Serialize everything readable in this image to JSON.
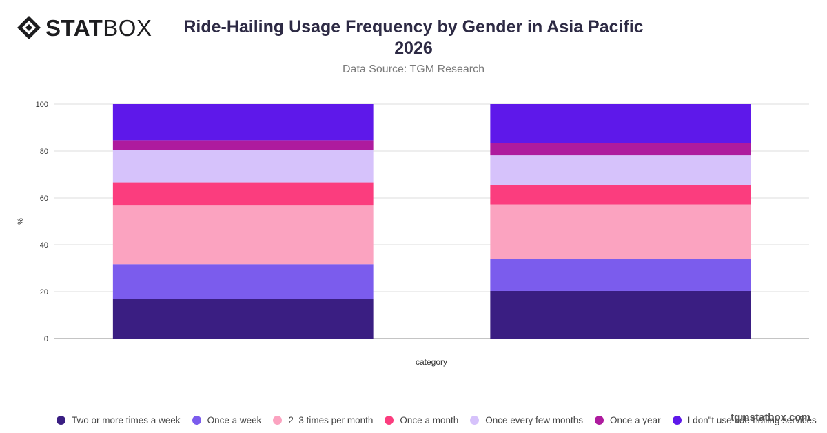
{
  "brand": {
    "logo_bold": "STAT",
    "logo_light": "BOX",
    "watermark": "tgmstatbox.com"
  },
  "chart_data": {
    "type": "bar",
    "stacked": true,
    "title": "Ride-Hailing Usage Frequency by Gender in Asia Pacific 2026",
    "subtitle": "Data Source: TGM Research",
    "xlabel": "category",
    "ylabel": "%",
    "ylim": [
      0,
      100
    ],
    "yticks": [
      0,
      20,
      40,
      60,
      80,
      100
    ],
    "grid": true,
    "legend_position": "bottom",
    "categories": [
      "",
      ""
    ],
    "series": [
      {
        "name": "Two or more times a week",
        "color": "#3a1e82",
        "values": [
          17,
          20.3
        ]
      },
      {
        "name": "Once a week",
        "color": "#7b5ced",
        "values": [
          14.7,
          13.8
        ]
      },
      {
        "name": "2–3 times per month",
        "color": "#fba3c0",
        "values": [
          25,
          23.1
        ]
      },
      {
        "name": "Once a month",
        "color": "#fb3d7e",
        "values": [
          9.9,
          8.1
        ]
      },
      {
        "name": "Once every few months",
        "color": "#d6c2fb",
        "values": [
          13.9,
          12.9
        ]
      },
      {
        "name": "Once a year",
        "color": "#ae1b9e",
        "values": [
          4.1,
          5.2
        ]
      },
      {
        "name": "I don\"t use ride-hailing services",
        "color": "#5e18ea",
        "values": [
          15.4,
          16.6
        ]
      }
    ]
  }
}
